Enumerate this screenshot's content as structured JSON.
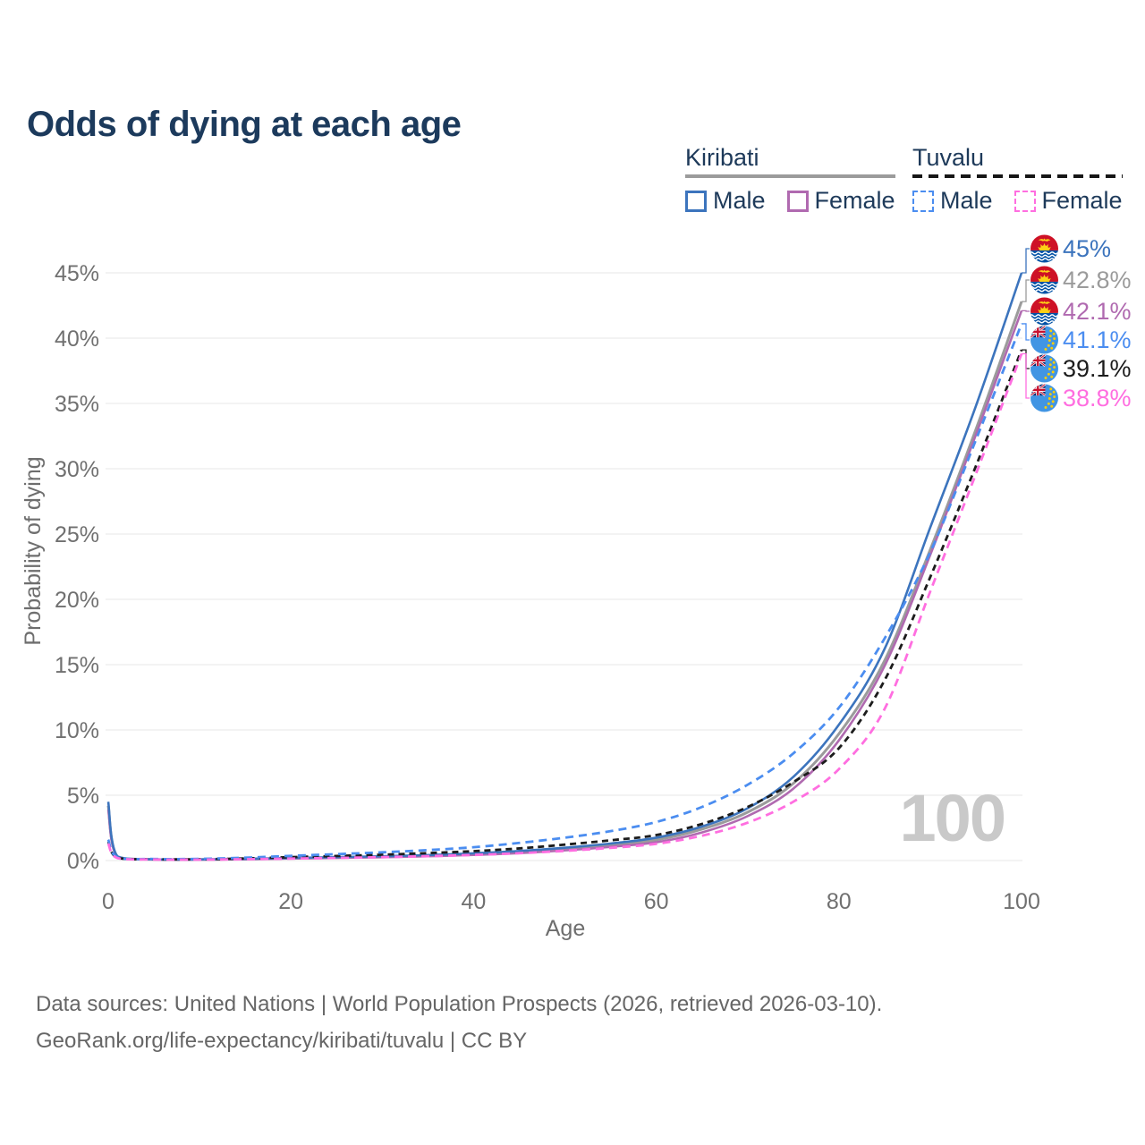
{
  "title": "Odds of dying at each age",
  "watermark_age": "100",
  "legend": {
    "kiribati": {
      "label": "Kiribati",
      "male": "Male",
      "female": "Female"
    },
    "tuvalu": {
      "label": "Tuvalu",
      "male": "Male",
      "female": "Female"
    }
  },
  "footer": {
    "line1": "Data sources: United Nations | World Population Prospects (2026, retrieved 2026-03-10).",
    "line2": "GeoRank.org/life-expectancy/kiribati/tuvalu | CC BY"
  },
  "chart_data": {
    "type": "line",
    "title": "Odds of dying at each age",
    "xlabel": "Age",
    "ylabel": "Probability of dying",
    "xlim": [
      0,
      100
    ],
    "ylim_pct": [
      0,
      47
    ],
    "grid": "horizontal",
    "legend_position": "top-right",
    "x_ticks": [
      0,
      20,
      40,
      60,
      80,
      100
    ],
    "y_ticks_pct": [
      0,
      5,
      10,
      15,
      20,
      25,
      30,
      35,
      40,
      45
    ],
    "ages": [
      0,
      1,
      5,
      10,
      15,
      20,
      25,
      30,
      35,
      40,
      45,
      50,
      55,
      60,
      65,
      70,
      75,
      80,
      85,
      90,
      95,
      100
    ],
    "series": [
      {
        "name": "Kiribati Male",
        "country": "Kiribati",
        "group": "Male",
        "line_style": "solid",
        "color": "#3c74bd",
        "flag": "kiribati",
        "end_label": "45%",
        "end_value_pct": 45.0,
        "values_pct": [
          4.5,
          0.32,
          0.1,
          0.09,
          0.13,
          0.2,
          0.26,
          0.33,
          0.42,
          0.55,
          0.73,
          0.98,
          1.3,
          1.75,
          2.6,
          4.0,
          6.4,
          10.4,
          16.2,
          25.5,
          34.8,
          45.0
        ]
      },
      {
        "name": "Kiribati",
        "country": "Kiribati",
        "group": "Both sexes",
        "line_style": "solid",
        "color": "#9b9b9b",
        "flag": "kiribati",
        "end_label": "42.8%",
        "end_value_pct": 42.8,
        "values_pct": [
          4.2,
          0.3,
          0.09,
          0.08,
          0.12,
          0.18,
          0.23,
          0.29,
          0.37,
          0.49,
          0.65,
          0.88,
          1.18,
          1.58,
          2.4,
          3.7,
          5.9,
          9.7,
          15.3,
          23.8,
          33.0,
          42.8
        ]
      },
      {
        "name": "Kiribati Female",
        "country": "Kiribati",
        "group": "Female",
        "line_style": "solid",
        "color": "#b06ab0",
        "flag": "kiribati",
        "end_label": "42.1%",
        "end_value_pct": 42.1,
        "values_pct": [
          3.9,
          0.28,
          0.08,
          0.07,
          0.1,
          0.155,
          0.2,
          0.255,
          0.33,
          0.43,
          0.57,
          0.78,
          1.05,
          1.4,
          2.15,
          3.4,
          5.5,
          9.2,
          14.9,
          23.4,
          32.6,
          42.1
        ]
      },
      {
        "name": "Tuvalu Male",
        "country": "Tuvalu",
        "group": "Male",
        "line_style": "dashed",
        "color": "#4b8df0",
        "flag": "tuvalu",
        "end_label": "41.1%",
        "end_value_pct": 41.1,
        "values_pct": [
          1.6,
          0.25,
          0.12,
          0.13,
          0.22,
          0.36,
          0.49,
          0.63,
          0.8,
          1.02,
          1.35,
          1.75,
          2.25,
          2.95,
          4.1,
          5.8,
          8.2,
          11.7,
          17.0,
          23.6,
          32.2,
          41.1
        ]
      },
      {
        "name": "Tuvalu",
        "country": "Tuvalu",
        "group": "Both sexes",
        "line_style": "dashed",
        "color": "#1c1c1c",
        "flag": "tuvalu",
        "end_label": "39.1%",
        "end_value_pct": 39.1,
        "values_pct": [
          1.45,
          0.22,
          0.1,
          0.1,
          0.16,
          0.26,
          0.35,
          0.45,
          0.57,
          0.72,
          0.93,
          1.22,
          1.55,
          1.95,
          2.8,
          4.1,
          6.0,
          8.6,
          13.8,
          21.7,
          30.2,
          39.1
        ]
      },
      {
        "name": "Tuvalu Female",
        "country": "Tuvalu",
        "group": "Female",
        "line_style": "dashed",
        "color": "#ff6ee0",
        "flag": "tuvalu",
        "end_label": "38.8%",
        "end_value_pct": 38.8,
        "values_pct": [
          1.3,
          0.19,
          0.08,
          0.07,
          0.1,
          0.15,
          0.2,
          0.26,
          0.335,
          0.43,
          0.56,
          0.74,
          0.97,
          1.28,
          1.9,
          2.9,
          4.5,
          7.0,
          11.6,
          20.6,
          29.6,
          38.8
        ]
      }
    ]
  }
}
